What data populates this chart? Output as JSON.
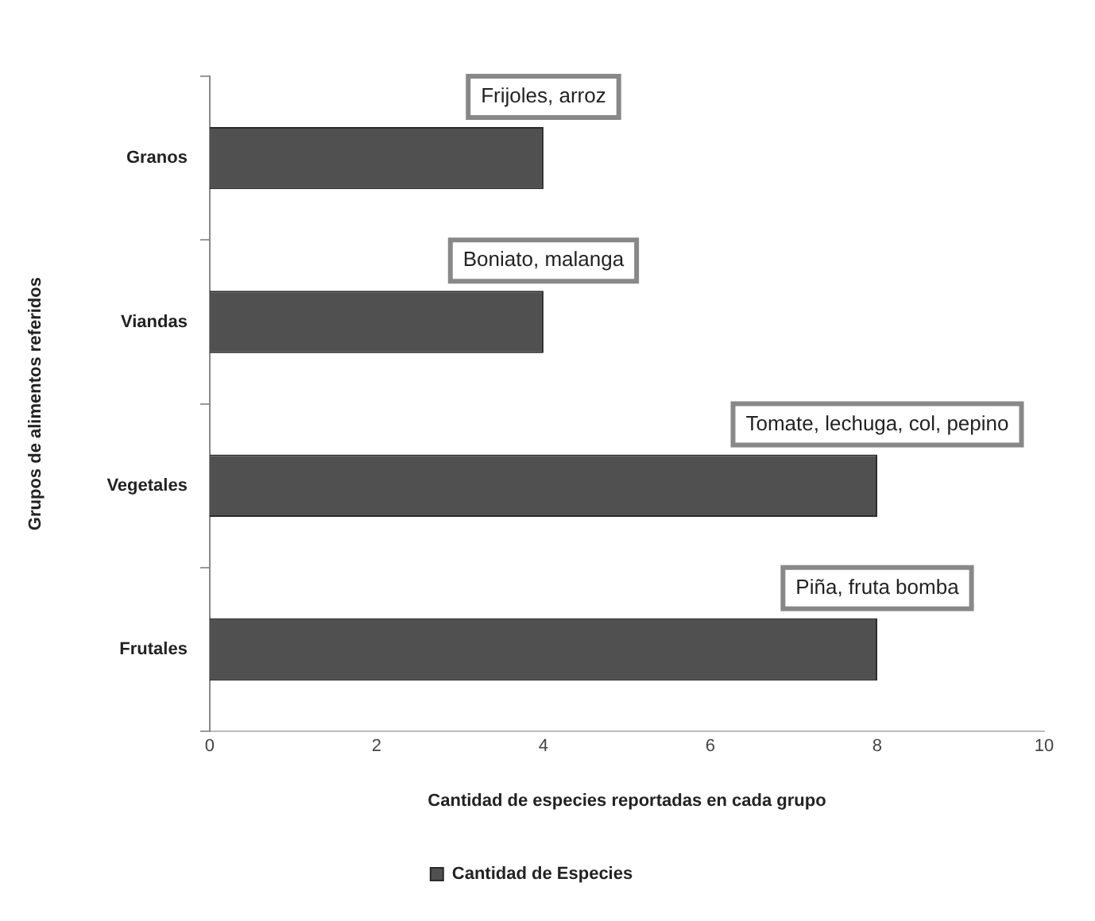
{
  "chart_data": {
    "type": "bar",
    "orientation": "horizontal",
    "xlabel": "Cantidad de especies reportadas en cada grupo",
    "ylabel": "Grupos de alimentos referidos",
    "categories": [
      "Granos",
      "Viandas",
      "Vegetales",
      "Frutales"
    ],
    "series": [
      {
        "name": "Cantidad de Especies",
        "color": "#505050",
        "values": [
          4,
          4,
          8,
          8
        ]
      }
    ],
    "xlim": [
      0,
      10
    ],
    "xticks": [
      0,
      2,
      4,
      6,
      8,
      10
    ],
    "legend": "bottom",
    "annotations": [
      "Frijoles, arroz",
      "Boniato, malanga",
      "Tomate, lechuga, col, pepino",
      "Piña, fruta bomba"
    ]
  }
}
